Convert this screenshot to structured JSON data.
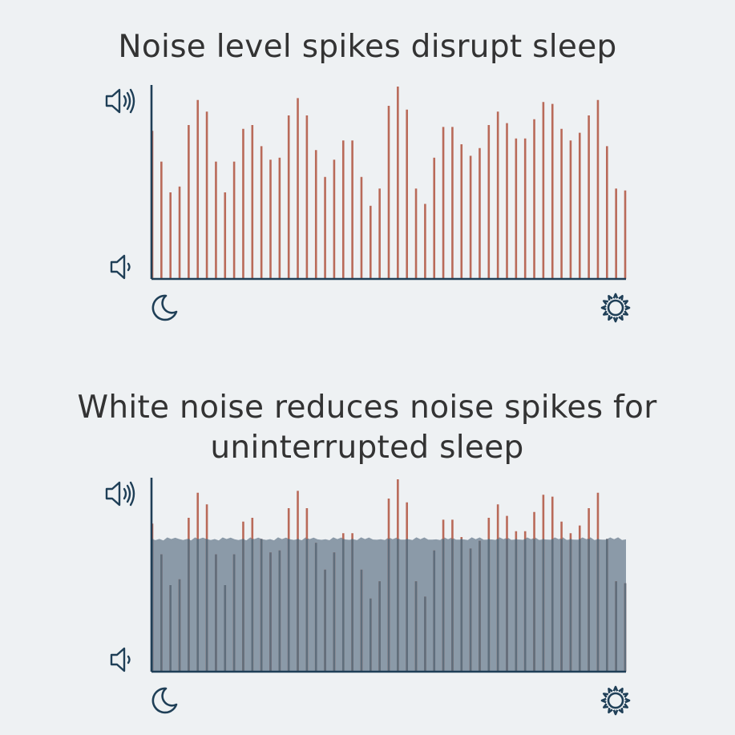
{
  "chart_data": [
    {
      "type": "bar",
      "title": "Noise level spikes disrupt sleep",
      "xlabel": "",
      "ylabel": "",
      "ylim": [
        0,
        1
      ],
      "x_start_icon": "moon-icon",
      "x_end_icon": "sun-icon",
      "y_top_icon": "loud-speaker-icon",
      "y_bottom_icon": "quiet-speaker-icon",
      "bar_color": "#b96a59",
      "values": [
        0.77,
        0.61,
        0.45,
        0.48,
        0.8,
        0.93,
        0.87,
        0.61,
        0.45,
        0.61,
        0.78,
        0.8,
        0.69,
        0.62,
        0.63,
        0.85,
        0.94,
        0.85,
        0.67,
        0.53,
        0.62,
        0.72,
        0.72,
        0.53,
        0.38,
        0.47,
        0.9,
        1.0,
        0.88,
        0.47,
        0.39,
        0.63,
        0.79,
        0.79,
        0.7,
        0.64,
        0.68,
        0.8,
        0.87,
        0.81,
        0.73,
        0.73,
        0.83,
        0.92,
        0.91,
        0.78,
        0.72,
        0.76,
        0.85,
        0.93,
        0.69,
        0.47,
        0.46
      ]
    },
    {
      "type": "bar",
      "title": "White noise reduces noise spikes for uninterrupted sleep",
      "xlabel": "",
      "ylabel": "",
      "ylim": [
        0,
        1
      ],
      "x_start_icon": "moon-icon",
      "x_end_icon": "sun-icon",
      "y_top_icon": "loud-speaker-icon",
      "y_bottom_icon": "quiet-speaker-icon",
      "bar_color": "#b96a59",
      "masking_level": 0.69,
      "masking_color": "#8b9aa8",
      "values": [
        0.77,
        0.61,
        0.45,
        0.48,
        0.8,
        0.93,
        0.87,
        0.61,
        0.45,
        0.61,
        0.78,
        0.8,
        0.69,
        0.62,
        0.63,
        0.85,
        0.94,
        0.85,
        0.67,
        0.53,
        0.62,
        0.72,
        0.72,
        0.53,
        0.38,
        0.47,
        0.9,
        1.0,
        0.88,
        0.47,
        0.39,
        0.63,
        0.79,
        0.79,
        0.7,
        0.64,
        0.68,
        0.8,
        0.87,
        0.81,
        0.73,
        0.73,
        0.83,
        0.92,
        0.91,
        0.78,
        0.72,
        0.76,
        0.85,
        0.93,
        0.69,
        0.47,
        0.46
      ]
    }
  ],
  "colors": {
    "axis": "#1f3f57",
    "icon": "#1f3f57",
    "title": "#333333",
    "background": "#eef1f3"
  }
}
